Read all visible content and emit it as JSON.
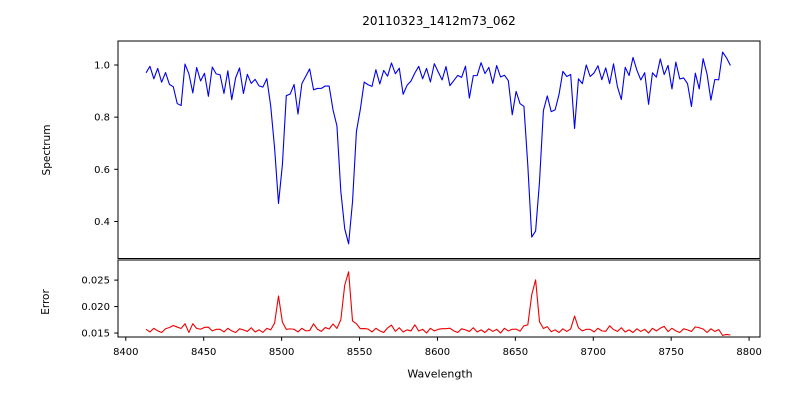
{
  "chart_data": {
    "type": "line",
    "title": "20110323_1412m73_062",
    "xlabel": "Wavelength",
    "background": "#FFFFFF",
    "axis_color": "#000000",
    "grid": false,
    "legend": null,
    "xlim": [
      8395,
      8807
    ],
    "xtick_values": [
      8400,
      8450,
      8500,
      8550,
      8600,
      8650,
      8700,
      8750,
      8800
    ],
    "xtick_labels": [
      "8400",
      "8450",
      "8500",
      "8550",
      "8600",
      "8650",
      "8700",
      "8750",
      "8800"
    ],
    "x_sampling": {
      "start": 8413,
      "step": 2.5,
      "n": 151
    },
    "panels": [
      {
        "name": "spectrum-panel",
        "ylabel": "Spectrum",
        "ylim": [
          0.258,
          1.092
        ],
        "ytick_values": [
          0.4,
          0.6,
          0.8,
          1.0
        ],
        "ytick_labels": [
          "0.4",
          "0.6",
          "0.8",
          "1.0"
        ]
      },
      {
        "name": "error-panel",
        "ylabel": "Error",
        "ylim": [
          0.01425,
          0.0288
        ],
        "ytick_values": [
          0.015,
          0.02,
          0.025
        ],
        "ytick_labels": [
          "0.015",
          "0.020",
          "0.025"
        ]
      }
    ],
    "features_format": "[center_wavelength, amplitude, gaussian_width_angstrom]",
    "series": [
      {
        "name": "spectrum",
        "panel": 0,
        "color": "#0000EE",
        "baseline": 0.975,
        "noise": [
          -0.005,
          0.02,
          -0.028,
          0.012,
          -0.04,
          0.03,
          -0.002,
          -0.032,
          0.022,
          -0.012,
          0.042,
          0.004,
          -0.022,
          0.028,
          -0.036,
          0.01,
          -0.015,
          0.034,
          -0.008,
          0.016,
          -0.045,
          0.024,
          -0.018
        ],
        "noise_gain": {
          "start": 8690,
          "slope": 0.008
        },
        "features": [
          [
            8427,
            -0.06,
            2
          ],
          [
            8434,
            -0.17,
            2.5
          ],
          [
            8443,
            -0.06,
            2
          ],
          [
            8453,
            -0.08,
            2
          ],
          [
            8462,
            -0.05,
            2
          ],
          [
            8468,
            -0.09,
            2
          ],
          [
            8476,
            -0.06,
            2
          ],
          [
            8484,
            -0.07,
            2
          ],
          [
            8498,
            -0.42,
            3.5
          ],
          [
            8498,
            -0.09,
            9
          ],
          [
            8511,
            -0.14,
            2.5
          ],
          [
            8523,
            -0.07,
            2
          ],
          [
            8542,
            -0.52,
            5
          ],
          [
            8542,
            -0.16,
            13
          ],
          [
            8580,
            -0.08,
            2.5
          ],
          [
            8610,
            -0.08,
            2.5
          ],
          [
            8621,
            -0.07,
            2
          ],
          [
            8648,
            -0.11,
            2.5
          ],
          [
            8662,
            -0.52,
            4.5
          ],
          [
            8662,
            -0.14,
            11
          ],
          [
            8675,
            -0.15,
            2.5
          ],
          [
            8688,
            -0.21,
            2
          ],
          [
            8717,
            -0.08,
            2.5
          ],
          [
            8735,
            -0.08,
            2.5
          ],
          [
            8762,
            -0.1,
            3
          ],
          [
            8777,
            -0.08,
            2.5
          ],
          [
            8787,
            0.08,
            2
          ]
        ],
        "key_absorption_lines": {
          "CaII_8498": {
            "wavelength": 8498,
            "core_flux": 0.47
          },
          "CaII_8542": {
            "wavelength": 8542,
            "core_flux": 0.3
          },
          "CaII_8662": {
            "wavelength": 8662,
            "core_flux": 0.32
          }
        }
      },
      {
        "name": "error",
        "panel": 1,
        "color": "#EE0000",
        "baseline": 0.0155,
        "noise": [
          0.0002,
          -0.0003,
          0.0004,
          -0.0001,
          -0.0004,
          0.0003,
          0.0001,
          -0.0002,
          0.0005,
          -0.0003,
          0.0001,
          -0.0004,
          0.0003,
          -0.0002,
          0.0002,
          -0.0005,
          0.0004,
          -0.0001,
          0.0002
        ],
        "noise_gain": null,
        "features": [
          [
            8430,
            0.0012,
            2
          ],
          [
            8437,
            0.0018,
            1.5
          ],
          [
            8444,
            0.0015,
            1.5
          ],
          [
            8451,
            0.0012,
            1.5
          ],
          [
            8498,
            0.0062,
            1.6
          ],
          [
            8498,
            0.0008,
            5
          ],
          [
            8520,
            0.001,
            2
          ],
          [
            8532,
            0.0012,
            1.5
          ],
          [
            8542,
            0.0112,
            2.2
          ],
          [
            8542,
            0.0018,
            7
          ],
          [
            8570,
            0.001,
            1.5
          ],
          [
            8585,
            0.0008,
            2
          ],
          [
            8605,
            0.0007,
            1.5
          ],
          [
            8662,
            0.01,
            2.0
          ],
          [
            8662,
            0.0015,
            6
          ],
          [
            8688,
            0.0032,
            1.3
          ],
          [
            8710,
            0.0006,
            2
          ],
          [
            8745,
            0.0006,
            2
          ],
          [
            8768,
            0.0008,
            2
          ],
          [
            8786,
            -0.0012,
            3
          ]
        ],
        "key_peaks": {
          "at_8498": 0.022,
          "at_8542": 0.028,
          "at_8662": 0.027
        }
      }
    ]
  }
}
